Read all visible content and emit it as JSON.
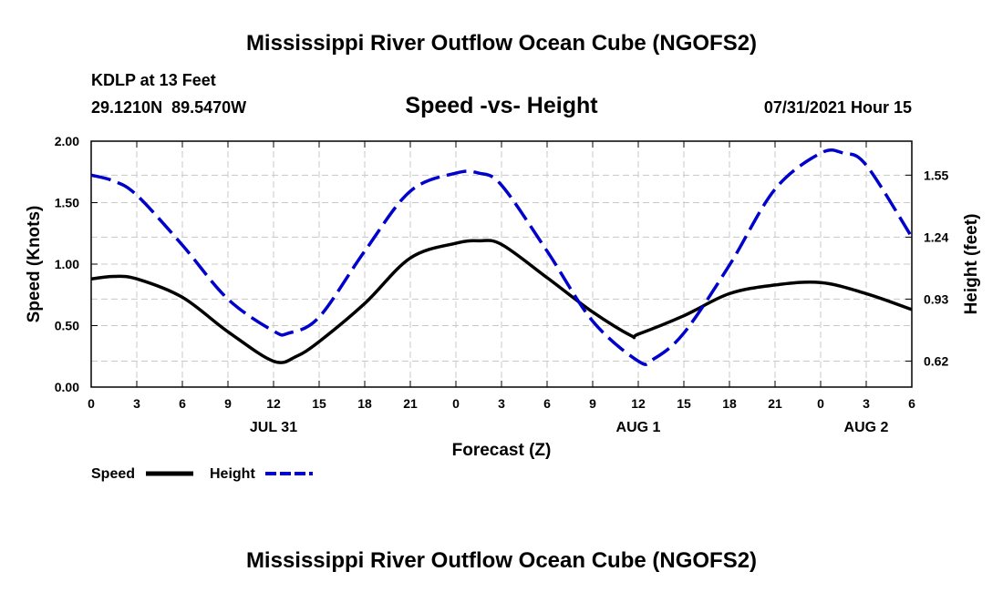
{
  "header": {
    "title_top": "Mississippi River Outflow Ocean Cube (NGOFS2)",
    "station": "KDLP at 13 Feet",
    "coords": "29.1210N  89.5470W",
    "timestamp": "07/31/2021 Hour 15",
    "title_bottom": "Mississippi River Outflow Ocean Cube (NGOFS2)"
  },
  "chart_data": {
    "type": "line",
    "title": "Speed -vs- Height",
    "xlabel": "Forecast (Z)",
    "ylabel_left": "Speed (Knots)",
    "ylabel_right": "Height (feet)",
    "x_range_hours": [
      0,
      54
    ],
    "x_ticks": [
      {
        "h": 0,
        "label": "0"
      },
      {
        "h": 3,
        "label": "3"
      },
      {
        "h": 6,
        "label": "6"
      },
      {
        "h": 9,
        "label": "9"
      },
      {
        "h": 12,
        "label": "12"
      },
      {
        "h": 15,
        "label": "15"
      },
      {
        "h": 18,
        "label": "18"
      },
      {
        "h": 21,
        "label": "21"
      },
      {
        "h": 24,
        "label": "0"
      },
      {
        "h": 27,
        "label": "3"
      },
      {
        "h": 30,
        "label": "6"
      },
      {
        "h": 33,
        "label": "9"
      },
      {
        "h": 36,
        "label": "12"
      },
      {
        "h": 39,
        "label": "15"
      },
      {
        "h": 42,
        "label": "18"
      },
      {
        "h": 45,
        "label": "21"
      },
      {
        "h": 48,
        "label": "0"
      },
      {
        "h": 51,
        "label": "3"
      },
      {
        "h": 54,
        "label": "6"
      }
    ],
    "date_labels": [
      {
        "h": 12,
        "label": "JUL 31"
      },
      {
        "h": 36,
        "label": "AUG 1"
      },
      {
        "h": 51,
        "label": "AUG 2"
      }
    ],
    "ylim_left": [
      0,
      2
    ],
    "yticks_left": [
      {
        "v": 0,
        "label": "0.00"
      },
      {
        "v": 0.5,
        "label": "0.50"
      },
      {
        "v": 1.0,
        "label": "1.00"
      },
      {
        "v": 1.5,
        "label": "1.50"
      },
      {
        "v": 2.0,
        "label": "2.00"
      }
    ],
    "ylim_right": [
      0.49,
      1.72
    ],
    "yticks_right": [
      {
        "v": 0.62,
        "label": "0.62"
      },
      {
        "v": 0.93,
        "label": "0.93"
      },
      {
        "v": 1.24,
        "label": "1.24"
      },
      {
        "v": 1.55,
        "label": "1.55"
      }
    ],
    "grid": true,
    "legend_position": "below-left",
    "series": [
      {
        "name": "Speed",
        "axis": "left",
        "color": "#000000",
        "style": "solid",
        "points": [
          [
            0,
            0.88
          ],
          [
            1.5,
            0.9
          ],
          [
            3,
            0.88
          ],
          [
            6,
            0.73
          ],
          [
            9,
            0.45
          ],
          [
            12,
            0.21
          ],
          [
            13.5,
            0.25
          ],
          [
            15,
            0.37
          ],
          [
            18,
            0.68
          ],
          [
            21,
            1.05
          ],
          [
            24,
            1.17
          ],
          [
            25.5,
            1.19
          ],
          [
            27,
            1.16
          ],
          [
            30,
            0.89
          ],
          [
            33,
            0.61
          ],
          [
            35.5,
            0.42
          ],
          [
            36,
            0.43
          ],
          [
            39,
            0.58
          ],
          [
            42,
            0.76
          ],
          [
            45,
            0.83
          ],
          [
            48,
            0.85
          ],
          [
            51,
            0.76
          ],
          [
            54,
            0.63
          ]
        ]
      },
      {
        "name": "Height",
        "axis": "right",
        "color": "#0000cc",
        "style": "dashed",
        "points": [
          [
            0,
            1.55
          ],
          [
            1.5,
            1.52
          ],
          [
            3,
            1.45
          ],
          [
            6,
            1.2
          ],
          [
            9,
            0.93
          ],
          [
            12,
            0.77
          ],
          [
            13,
            0.76
          ],
          [
            15,
            0.84
          ],
          [
            18,
            1.17
          ],
          [
            21,
            1.47
          ],
          [
            24,
            1.56
          ],
          [
            25.5,
            1.56
          ],
          [
            27,
            1.5
          ],
          [
            30,
            1.17
          ],
          [
            33,
            0.82
          ],
          [
            36,
            0.62
          ],
          [
            37,
            0.63
          ],
          [
            39,
            0.76
          ],
          [
            42,
            1.1
          ],
          [
            45,
            1.48
          ],
          [
            48,
            1.66
          ],
          [
            49.5,
            1.66
          ],
          [
            51,
            1.6
          ],
          [
            54,
            1.24
          ]
        ]
      }
    ]
  }
}
